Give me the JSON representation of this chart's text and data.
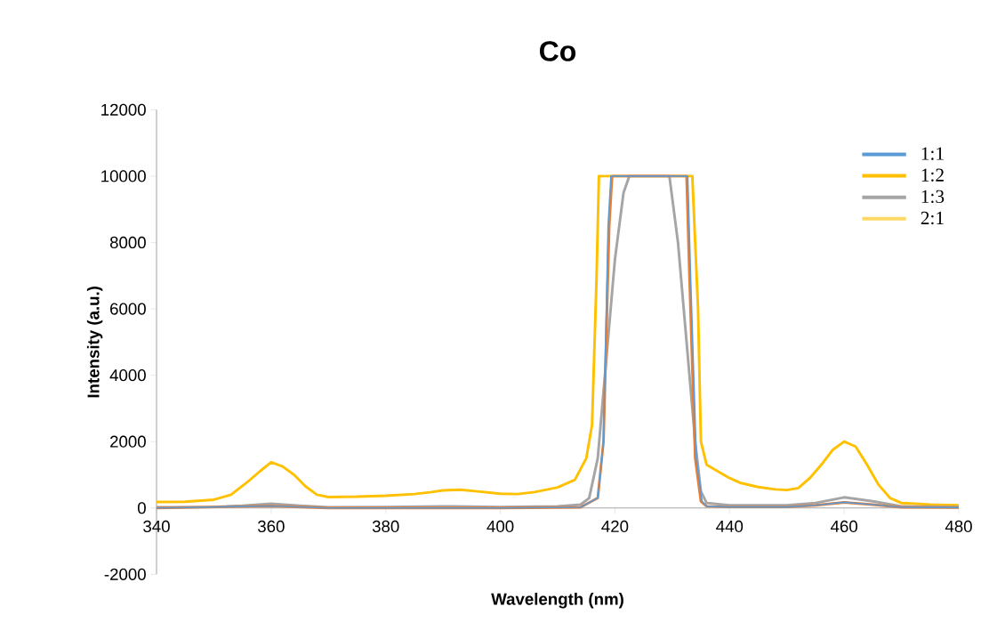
{
  "chart_data": {
    "type": "line",
    "title": "Co",
    "xlabel": "Wavelength (nm)",
    "ylabel": "Intensity (a.u.)",
    "xlim": [
      340,
      480
    ],
    "xticks": [
      340,
      360,
      380,
      400,
      420,
      440,
      460,
      480
    ],
    "ylim": [
      -2000,
      12000
    ],
    "yticks": [
      -2000,
      0,
      2000,
      4000,
      6000,
      8000,
      10000,
      12000
    ],
    "grid": false,
    "legend": "top right",
    "line_style": "solid",
    "marker": "none",
    "series": [
      {
        "name": "1:1",
        "color": "#5b9bd5",
        "x": [
          340,
          360,
          370,
          400,
          414,
          417,
          418,
          418.8,
          419.3,
          432.7,
          433.2,
          434.2,
          435.2,
          436,
          440,
          450,
          455,
          460,
          465,
          470,
          480
        ],
        "values": [
          0,
          60,
          0,
          0,
          20,
          300,
          2000,
          8500,
          10000,
          10000,
          7000,
          1500,
          200,
          50,
          30,
          30,
          80,
          170,
          100,
          20,
          10
        ]
      },
      {
        "name": "1:2",
        "color": "#ffc000",
        "x": [
          340,
          345,
          350,
          353,
          356,
          358,
          360,
          362,
          364,
          366,
          368,
          370,
          375,
          380,
          385,
          388,
          390,
          393,
          396,
          400,
          403,
          406,
          410,
          413,
          415,
          416,
          416.8,
          417.2,
          420,
          430,
          433.5,
          434.5,
          435,
          436,
          438,
          440,
          442,
          445,
          448,
          450,
          452,
          454,
          456,
          458,
          460,
          462,
          464,
          466,
          468,
          470,
          475,
          480
        ],
        "values": [
          180,
          190,
          250,
          400,
          800,
          1100,
          1380,
          1250,
          1000,
          650,
          400,
          330,
          340,
          370,
          420,
          480,
          530,
          550,
          500,
          430,
          420,
          480,
          620,
          850,
          1500,
          2500,
          7000,
          10000,
          10000,
          10000,
          10000,
          6000,
          2000,
          1300,
          1100,
          900,
          750,
          630,
          560,
          540,
          600,
          900,
          1300,
          1750,
          2000,
          1850,
          1300,
          700,
          300,
          150,
          100,
          80
        ]
      },
      {
        "name": "1:3",
        "color": "#a5a5a5",
        "x": [
          340,
          350,
          355,
          360,
          365,
          370,
          380,
          390,
          400,
          410,
          414,
          415.5,
          417,
          418.5,
          420,
          421.5,
          422.5,
          429.5,
          431,
          432,
          433,
          434,
          435,
          436,
          440,
          450,
          455,
          460,
          465,
          470,
          480
        ],
        "values": [
          20,
          30,
          70,
          130,
          70,
          20,
          30,
          50,
          30,
          50,
          100,
          300,
          1500,
          4500,
          7500,
          9500,
          10000,
          10000,
          8000,
          6000,
          4000,
          2000,
          500,
          150,
          80,
          80,
          150,
          320,
          200,
          50,
          30
        ]
      },
      {
        "name": "2:1",
        "color": "#ffd966",
        "values": [
          null
        ]
      },
      {
        "color": "#ed7d31",
        "x": [
          340,
          360,
          370,
          400,
          414,
          417,
          418,
          419,
          419.5,
          432.5,
          433,
          434,
          435,
          436,
          440,
          450,
          455,
          460,
          465,
          470,
          480
        ],
        "values": [
          0,
          60,
          0,
          0,
          20,
          300,
          2000,
          8500,
          10000,
          10000,
          7000,
          1500,
          200,
          50,
          30,
          30,
          80,
          170,
          100,
          20,
          10
        ]
      }
    ]
  }
}
